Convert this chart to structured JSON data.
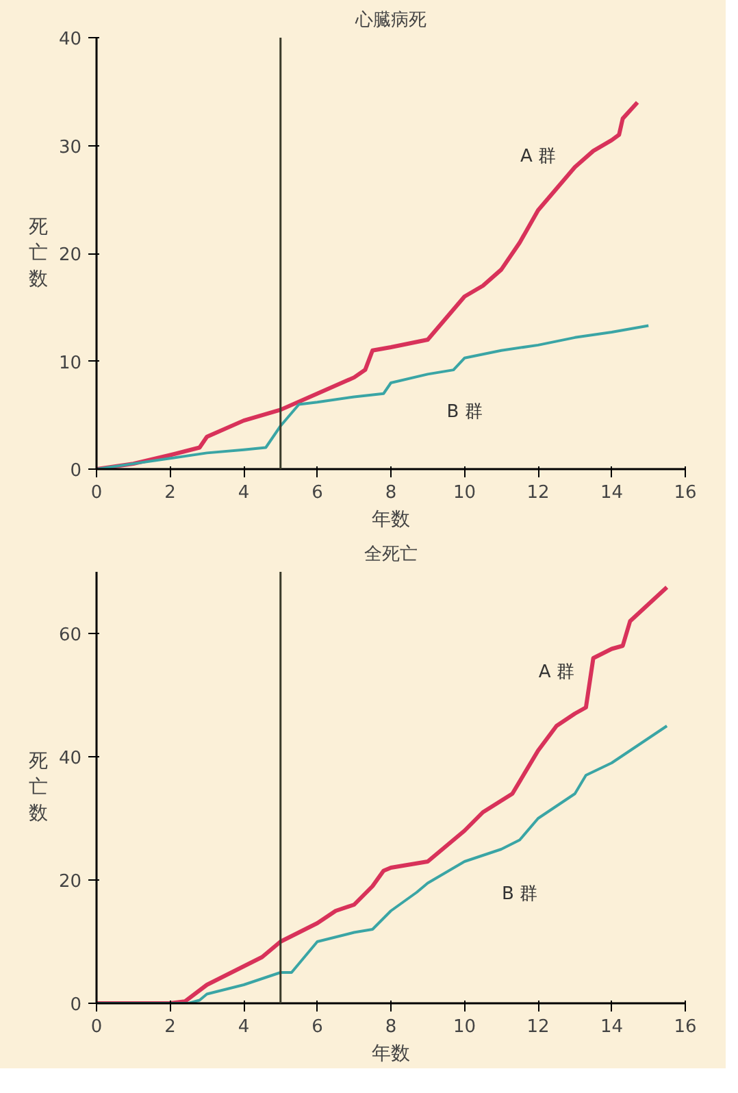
{
  "chart_data": [
    {
      "type": "line",
      "title": "心臓病死",
      "xlabel": "年数",
      "ylabel": "死亡数",
      "xlim": [
        0,
        16
      ],
      "xticks": [
        0,
        2,
        4,
        6,
        8,
        10,
        12,
        14,
        16
      ],
      "ylim": [
        0,
        40
      ],
      "yticks": [
        0,
        10,
        20,
        30,
        40
      ],
      "grid": false,
      "marker": "none",
      "line_style": "solid",
      "ref_lines": [
        {
          "axis": "x",
          "value": 5,
          "color": "#3a3a2a"
        }
      ],
      "series": [
        {
          "name": "A 群",
          "color": "#d8325a",
          "x": [
            0,
            1,
            2,
            2.8,
            3,
            4,
            5,
            6,
            7,
            7.3,
            7.5,
            8,
            9,
            9.5,
            10,
            10.5,
            11,
            11.5,
            12,
            12.5,
            13,
            13.5,
            14,
            14.2,
            14.3,
            14.7
          ],
          "values": [
            0,
            0.5,
            1.3,
            2,
            3,
            4.5,
            5.5,
            7,
            8.5,
            9.2,
            11,
            11.3,
            12,
            14,
            16,
            17,
            18.5,
            21,
            24,
            26,
            28,
            29.5,
            30.5,
            31,
            32.5,
            34
          ]
        },
        {
          "name": "B 群",
          "color": "#3aa5a5",
          "x": [
            0,
            1,
            2,
            3,
            4,
            4.6,
            5,
            5.5,
            6,
            7,
            7.8,
            8,
            9,
            9.7,
            10,
            11,
            12,
            13,
            14,
            15
          ],
          "values": [
            0,
            0.5,
            1,
            1.5,
            1.8,
            2,
            4,
            6,
            6.2,
            6.7,
            7,
            8,
            8.8,
            9.2,
            10.3,
            11,
            11.5,
            12.2,
            12.7,
            13.3
          ]
        }
      ]
    },
    {
      "type": "line",
      "title": "全死亡",
      "xlabel": "年数",
      "ylabel": "死亡数",
      "xlim": [
        0,
        16
      ],
      "xticks": [
        0,
        2,
        4,
        6,
        8,
        10,
        12,
        14,
        16
      ],
      "ylim": [
        0,
        70
      ],
      "yticks": [
        0,
        20,
        40,
        60
      ],
      "grid": false,
      "marker": "none",
      "line_style": "solid",
      "ref_lines": [
        {
          "axis": "x",
          "value": 5,
          "color": "#3a3a2a"
        }
      ],
      "series": [
        {
          "name": "A 群",
          "color": "#d8325a",
          "x": [
            0,
            2,
            2.4,
            3,
            4,
            4.5,
            5,
            5.5,
            6,
            6.5,
            7,
            7.5,
            7.8,
            8,
            9,
            10,
            10.5,
            11.3,
            12,
            12.5,
            13,
            13.3,
            13.5,
            14,
            14.3,
            14.5,
            15.5
          ],
          "values": [
            0,
            0,
            0.3,
            3,
            6,
            7.5,
            10,
            11.5,
            13,
            15,
            16,
            19,
            21.5,
            22,
            23,
            28,
            31,
            34,
            41,
            45,
            47,
            48,
            56,
            57.5,
            58,
            62,
            67.5
          ]
        },
        {
          "name": "B 群",
          "color": "#3aa5a5",
          "x": [
            0,
            2.5,
            2.8,
            3,
            4,
            5,
            5.3,
            6,
            7,
            7.5,
            8,
            8.7,
            9,
            10,
            11,
            11.5,
            12,
            12.5,
            13,
            13.3,
            14,
            15.5
          ],
          "values": [
            0,
            0,
            0.5,
            1.5,
            3,
            5,
            5,
            10,
            11.5,
            12,
            15,
            18,
            19.5,
            23,
            25,
            26.5,
            30,
            32,
            34,
            37,
            39,
            45
          ]
        }
      ]
    }
  ]
}
